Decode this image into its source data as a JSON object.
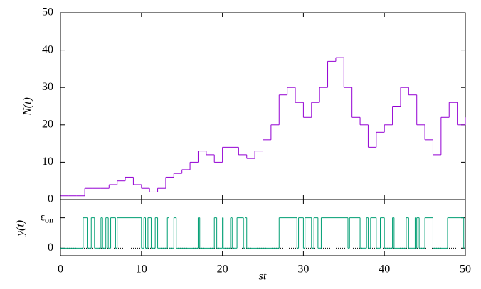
{
  "chart_data": [
    {
      "type": "step",
      "ylabel": "N(t)",
      "color": "#9400d3",
      "x": [
        0,
        1,
        2,
        3,
        4,
        5,
        6,
        7,
        8,
        9,
        10,
        11,
        12,
        13,
        14,
        15,
        16,
        17,
        18,
        19,
        20,
        21,
        22,
        23,
        24,
        25,
        26,
        27,
        28,
        29,
        30,
        31,
        32,
        33,
        34,
        35,
        36,
        37,
        38,
        39,
        40,
        41,
        42,
        43,
        44,
        45,
        46,
        47,
        48,
        49,
        50
      ],
      "values": [
        1,
        1,
        1,
        3,
        3,
        3,
        4,
        5,
        6,
        4,
        3,
        2,
        3,
        6,
        7,
        8,
        10,
        13,
        12,
        10,
        14,
        14,
        12,
        11,
        13,
        16,
        20,
        28,
        30,
        26,
        22,
        26,
        30,
        37,
        38,
        30,
        22,
        20,
        14,
        18,
        20,
        25,
        30,
        28,
        20,
        16,
        12,
        22,
        26,
        20,
        22
      ],
      "xlim": [
        0,
        50
      ],
      "ylim": [
        0,
        50
      ],
      "yticks": [
        0,
        10,
        20,
        30,
        40,
        50
      ]
    },
    {
      "type": "step",
      "ylabel": "y(t)",
      "xlabel": "st",
      "color": "#009e73",
      "x": [
        0,
        2.8,
        3.3,
        3.8,
        4.2,
        5.0,
        5.2,
        5.6,
        5.9,
        6.2,
        6.8,
        7.0,
        10.0,
        10.3,
        10.5,
        10.8,
        11.2,
        11.7,
        12.0,
        13.2,
        13.4,
        14.0,
        14.3,
        17.0,
        17.2,
        19.0,
        19.3,
        20.0,
        20.1,
        21.0,
        21.2,
        21.8,
        22.6,
        22.8,
        23.0,
        27.0,
        29.2,
        29.4,
        30.0,
        30.2,
        31.0,
        31.3,
        31.8,
        32.2,
        35.5,
        35.7,
        37.0,
        37.8,
        38.0,
        38.3,
        39.0,
        39.5,
        40.0,
        41.0,
        41.2,
        42.7,
        43.0,
        43.8,
        43.9,
        44.0,
        44.3,
        45.0,
        46.0,
        47.8,
        49.8,
        50
      ],
      "values": [
        0,
        1,
        0,
        1,
        0,
        1,
        0,
        1,
        0,
        1,
        0,
        1,
        0,
        1,
        0,
        1,
        0,
        1,
        0,
        1,
        0,
        1,
        0,
        1,
        0,
        1,
        0,
        1,
        0,
        1,
        0,
        1,
        0,
        1,
        0,
        1,
        0,
        1,
        0,
        1,
        0,
        1,
        0,
        1,
        0,
        1,
        0,
        1,
        0,
        1,
        0,
        1,
        0,
        1,
        0,
        1,
        0,
        1,
        0,
        1,
        0,
        1,
        0,
        1,
        0,
        0
      ],
      "xlim": [
        0,
        50
      ],
      "xticks": [
        0,
        10,
        20,
        30,
        40,
        50
      ],
      "ylim": [
        -0.25,
        1.6
      ],
      "yticks": [
        0,
        {
          "value": 1,
          "label": "ϵon"
        }
      ]
    }
  ]
}
